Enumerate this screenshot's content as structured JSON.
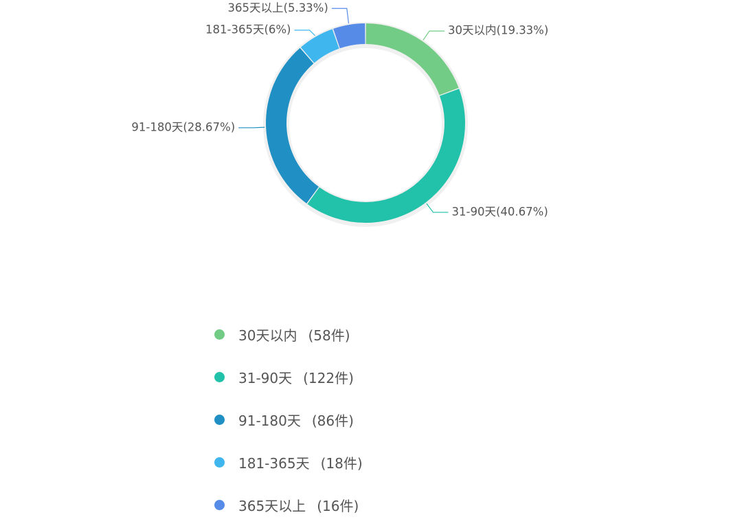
{
  "chart_data": {
    "type": "pie",
    "variant": "donut",
    "title": "",
    "unit": "件",
    "slices": [
      {
        "name": "30天以内",
        "value": 58,
        "percent_label": "19.33%",
        "color": "#73CC85"
      },
      {
        "name": "31-90天",
        "value": 122,
        "percent_label": "40.67%",
        "color": "#21C2A9"
      },
      {
        "name": "91-180天",
        "value": 86,
        "percent_label": "28.67%",
        "color": "#2090C4"
      },
      {
        "name": "181-365天",
        "value": 18,
        "percent_label": "6%",
        "color": "#3FB7EE"
      },
      {
        "name": "365天以上",
        "value": 16,
        "percent_label": "5.33%",
        "color": "#568CE8"
      }
    ],
    "legend_position": "bottom"
  },
  "legend": {
    "items": [
      {
        "name": "30天以内",
        "count_text": "(58件)",
        "color": "#73CC85"
      },
      {
        "name": "31-90天",
        "count_text": "(122件)",
        "color": "#21C2A9"
      },
      {
        "name": "91-180天",
        "count_text": "(86件)",
        "color": "#2090C4"
      },
      {
        "name": "181-365天",
        "count_text": "(18件)",
        "color": "#3FB7EE"
      },
      {
        "name": "365天以上",
        "count_text": "(16件)",
        "color": "#568CE8"
      }
    ]
  }
}
